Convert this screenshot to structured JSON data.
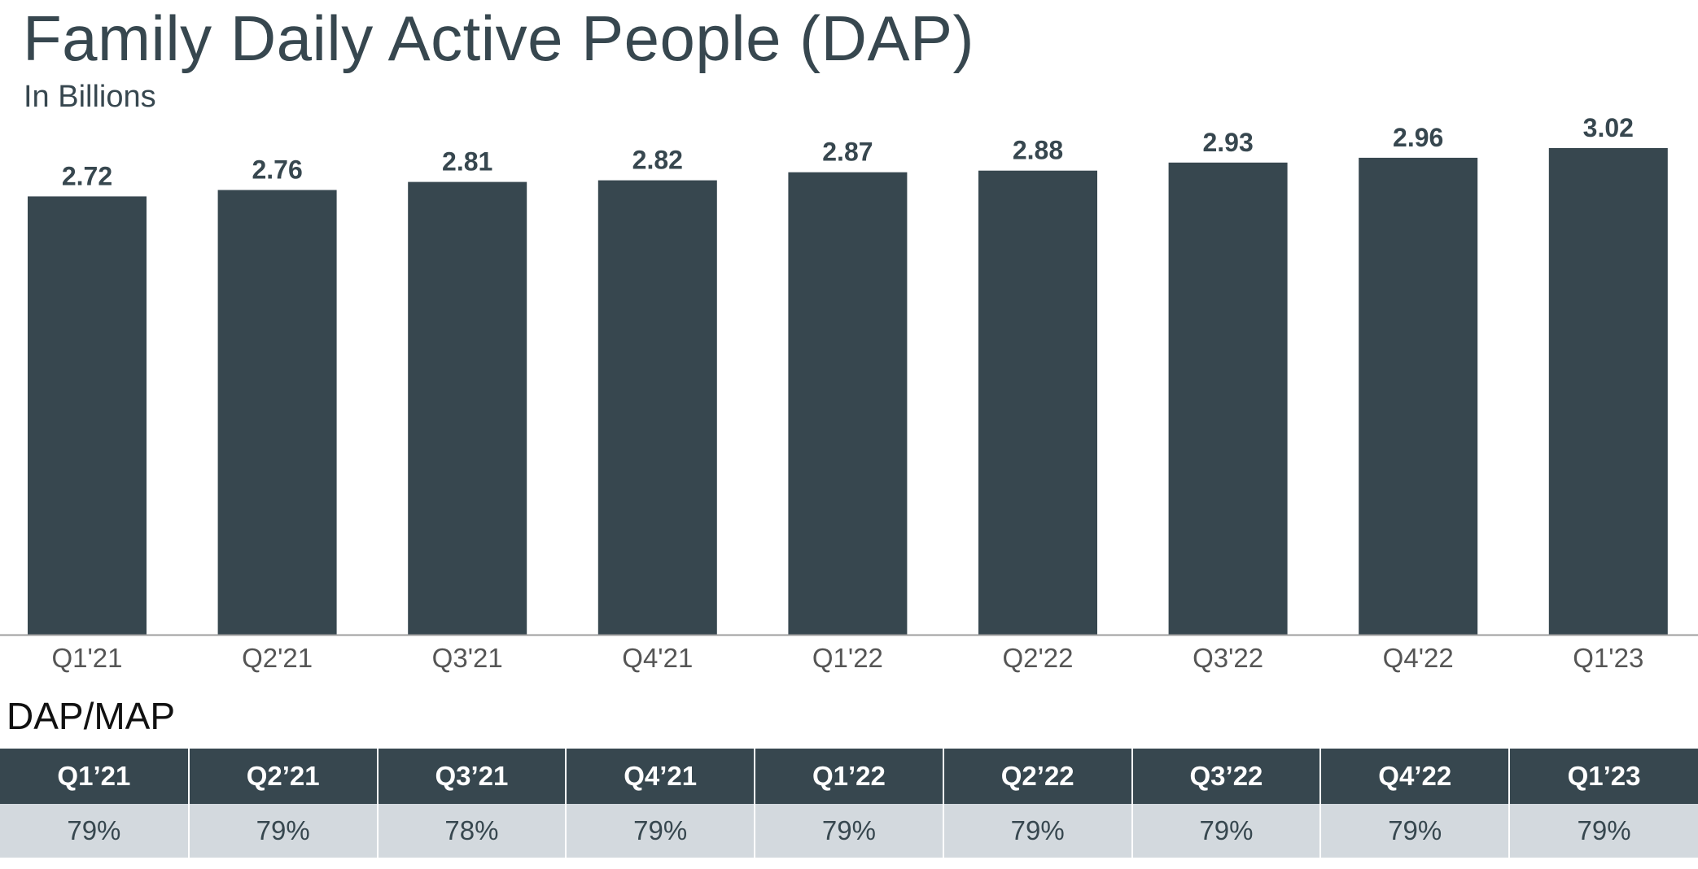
{
  "chart_data": {
    "type": "bar",
    "title": "Family Daily Active People (DAP)",
    "subtitle": "In Billions",
    "categories": [
      "Q1'21",
      "Q2'21",
      "Q3'21",
      "Q4'21",
      "Q1'22",
      "Q2'22",
      "Q3'22",
      "Q4'22",
      "Q1'23"
    ],
    "values": [
      2.72,
      2.76,
      2.81,
      2.82,
      2.87,
      2.88,
      2.93,
      2.96,
      3.02
    ],
    "value_labels": [
      "2.72",
      "2.76",
      "2.81",
      "2.82",
      "2.87",
      "2.88",
      "2.93",
      "2.96",
      "3.02"
    ],
    "ylim": [
      0,
      3.02
    ],
    "xlabel": "",
    "ylabel": "",
    "grid": false,
    "bar_color": "#37474f",
    "axis_color": "#9e9e9e"
  },
  "table": {
    "label": "DAP/MAP",
    "headers": [
      "Q1’21",
      "Q2’21",
      "Q3’21",
      "Q4’21",
      "Q1’22",
      "Q2’22",
      "Q3’22",
      "Q4’22",
      "Q1’23"
    ],
    "values": [
      "79%",
      "79%",
      "78%",
      "79%",
      "79%",
      "79%",
      "79%",
      "79%",
      "79%"
    ],
    "header_color": "#37474f",
    "row_color": "#d3d9de"
  }
}
